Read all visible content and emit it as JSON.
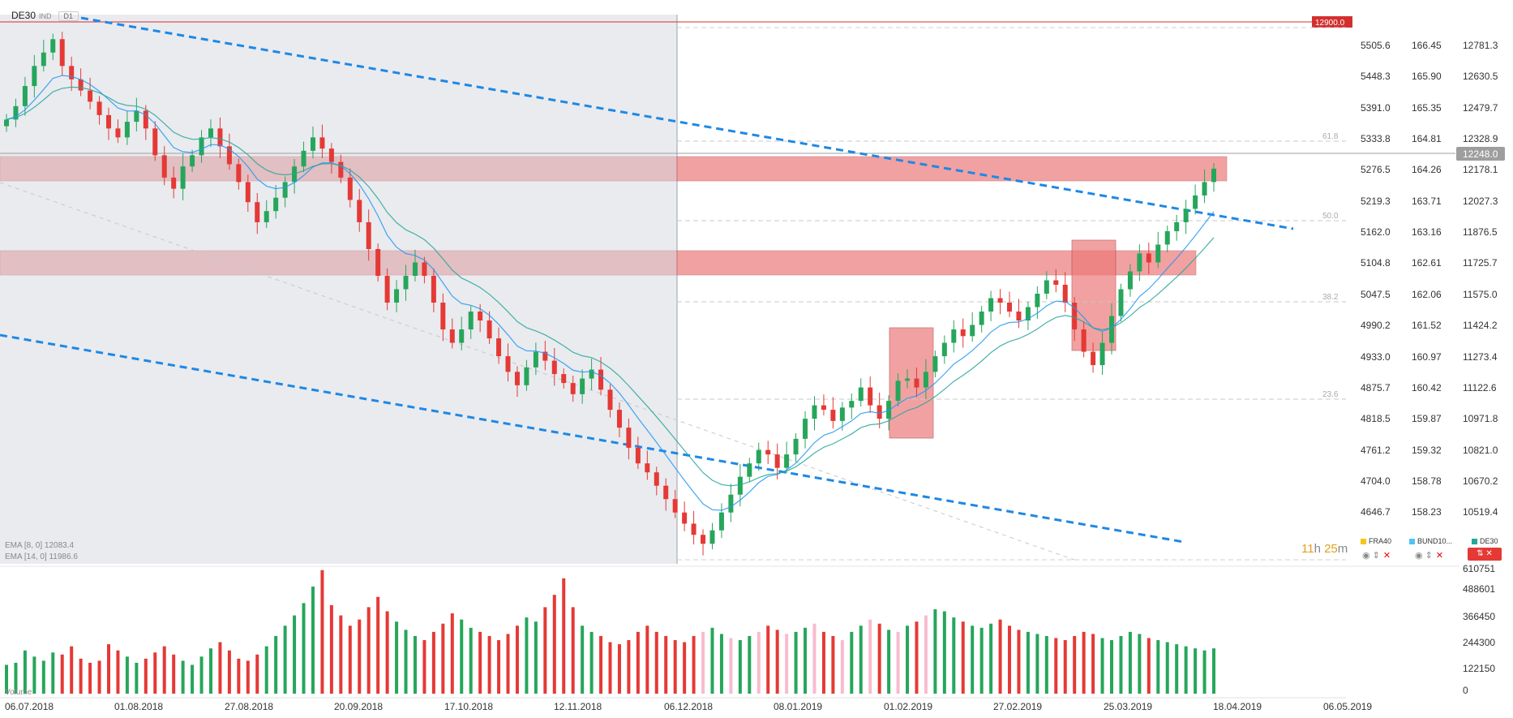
{
  "chart_data": {
    "type": "candlestick",
    "symbol": "DE30",
    "symbol_tag": "IND",
    "timeframe": "D1",
    "x_labels": [
      "06.07.2018",
      "01.08.2018",
      "27.08.2018",
      "20.09.2018",
      "17.10.2018",
      "12.11.2018",
      "06.12.2018",
      "08.01.2019",
      "01.02.2019",
      "27.02.2019",
      "25.03.2019",
      "18.04.2019",
      "06.05.2019"
    ],
    "price_axis_main": [
      "5505.6",
      "5448.3",
      "5391.0",
      "5333.8",
      "5276.5",
      "5219.3",
      "5162.0",
      "5104.8",
      "5047.5",
      "4990.2",
      "4933.0",
      "4875.7",
      "4818.5",
      "4761.2",
      "4704.0",
      "4646.7"
    ],
    "price_axis_2": [
      "166.45",
      "165.90",
      "165.35",
      "164.81",
      "164.26",
      "163.71",
      "163.16",
      "162.61",
      "162.06",
      "161.52",
      "160.97",
      "160.42",
      "159.87",
      "159.32",
      "158.78",
      "158.23"
    ],
    "price_axis_3": [
      "12781.3",
      "12630.5",
      "12479.7",
      "12328.9",
      "12178.1",
      "12027.3",
      "11876.5",
      "11725.7",
      "11575.0",
      "11424.2",
      "11273.4",
      "11122.6",
      "10971.8",
      "10821.0",
      "10670.2",
      "10519.4"
    ],
    "current_price": "12248.0",
    "top_line_label": "12900.0",
    "fib_levels": [
      "61.8",
      "50.0",
      "38.2",
      "23.6"
    ],
    "volume_axis": [
      "610751",
      "488601",
      "366450",
      "244300",
      "122150",
      "0"
    ],
    "volume_label": "Volume",
    "indicators": [
      {
        "name": "EMA [8, 0]",
        "value": "12083.4",
        "color": "#2196f3"
      },
      {
        "name": "EMA [14, 0]",
        "value": "11986.6",
        "color": "#26a69a"
      }
    ],
    "countdown_h": "11",
    "countdown_h_unit": "h",
    "countdown_m": "25",
    "countdown_m_unit": "m",
    "compare_symbols": [
      {
        "name": "FRA40",
        "color": "#f5c518"
      },
      {
        "name": "BUND10...",
        "color": "#4fc3f7"
      },
      {
        "name": "DE30",
        "color": "#26a69a"
      }
    ],
    "close_series": [
      12460,
      12520,
      12610,
      12700,
      12760,
      12820,
      12700,
      12640,
      12590,
      12540,
      12480,
      12420,
      12380,
      12450,
      12500,
      12420,
      12300,
      12200,
      12150,
      12250,
      12300,
      12380,
      12420,
      12340,
      12260,
      12180,
      12090,
      12000,
      12050,
      12110,
      12180,
      12250,
      12320,
      12380,
      12330,
      12270,
      12200,
      12100,
      12000,
      11880,
      11760,
      11640,
      11700,
      11760,
      11820,
      11760,
      11640,
      11520,
      11460,
      11520,
      11600,
      11560,
      11480,
      11400,
      11330,
      11270,
      11350,
      11420,
      11380,
      11320,
      11280,
      11230,
      11300,
      11340,
      11250,
      11160,
      11080,
      10990,
      10920,
      10880,
      10820,
      10760,
      10700,
      10650,
      10600,
      10560,
      10620,
      10700,
      10780,
      10860,
      10920,
      10980,
      10960,
      10900,
      10960,
      11030,
      11120,
      11180,
      11160,
      11110,
      11170,
      11200,
      11260,
      11180,
      11120,
      11200,
      11290,
      11300,
      11260,
      11330,
      11400,
      11460,
      11520,
      11490,
      11540,
      11600,
      11660,
      11640,
      11600,
      11560,
      11620,
      11680,
      11740,
      11720,
      11640,
      11520,
      11420,
      11360,
      11460,
      11580,
      11700,
      11780,
      11860,
      11820,
      11900,
      11960,
      12000,
      12060,
      12120,
      12180,
      12240
    ],
    "volumes": [
      140000,
      150000,
      210000,
      180000,
      160000,
      200000,
      190000,
      230000,
      170000,
      150000,
      160000,
      240000,
      210000,
      180000,
      150000,
      170000,
      200000,
      230000,
      190000,
      160000,
      140000,
      180000,
      220000,
      250000,
      210000,
      170000,
      160000,
      190000,
      230000,
      280000,
      330000,
      380000,
      440000,
      520000,
      600000,
      430000,
      380000,
      330000,
      360000,
      420000,
      470000,
      400000,
      350000,
      310000,
      280000,
      260000,
      300000,
      340000,
      390000,
      360000,
      320000,
      300000,
      280000,
      260000,
      290000,
      330000,
      370000,
      350000,
      420000,
      480000,
      560000,
      420000,
      330000,
      300000,
      280000,
      250000,
      240000,
      260000,
      300000,
      330000,
      300000,
      280000,
      260000,
      250000,
      280000,
      300000,
      320000,
      290000,
      270000,
      260000,
      280000,
      300000,
      330000,
      310000,
      290000,
      300000,
      320000,
      340000,
      300000,
      280000,
      260000,
      300000,
      330000,
      360000,
      340000,
      310000,
      300000,
      330000,
      350000,
      380000,
      410000,
      400000,
      370000,
      350000,
      330000,
      320000,
      340000,
      360000,
      330000,
      310000,
      300000,
      290000,
      280000,
      270000,
      260000,
      280000,
      300000,
      290000,
      270000,
      260000,
      280000,
      300000,
      290000,
      270000,
      260000,
      250000,
      240000,
      230000,
      220000,
      210000,
      220000
    ]
  }
}
